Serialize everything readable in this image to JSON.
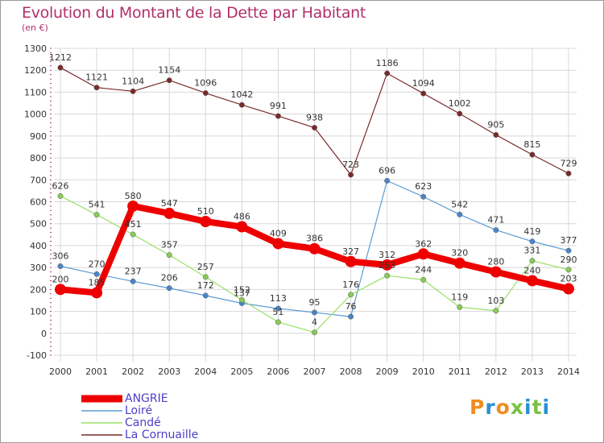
{
  "title": "Evolution du Montant de la Dette par Habitant",
  "unit": "(en €)",
  "logo": {
    "text": "Proxiti",
    "colors": [
      "#f08c1e",
      "#2a8fd6",
      "#f08c1e",
      "#7ac143",
      "#2a8fd6",
      "#7ac143",
      "#2a8fd6"
    ]
  },
  "chart_data": {
    "type": "line",
    "x": [
      "2000",
      "2001",
      "2002",
      "2003",
      "2004",
      "2005",
      "2006",
      "2007",
      "2008",
      "2009",
      "2010",
      "2011",
      "2012",
      "2013",
      "2014"
    ],
    "ylim": [
      -100,
      1300
    ],
    "yticks": [
      "-100",
      "0",
      "100",
      "200",
      "300",
      "400",
      "500",
      "600",
      "700",
      "800",
      "900",
      "1000",
      "1100",
      "1200",
      "1300"
    ],
    "grid": true,
    "legend_position": "bottom",
    "series": [
      {
        "name": "ANGRIE",
        "color": "#ee0000",
        "values": [
          200,
          185,
          580,
          547,
          510,
          486,
          409,
          386,
          327,
          312,
          362,
          320,
          280,
          240,
          203
        ],
        "labels": [
          "200",
          "185",
          "580",
          "547",
          "510",
          "486",
          "409",
          "386",
          "327",
          "312",
          "362",
          "320",
          "280",
          "240",
          "203"
        ]
      },
      {
        "name": "Loiré",
        "color": "#5b9bd5",
        "values": [
          306,
          270,
          237,
          206,
          172,
          137,
          113,
          95,
          76,
          696,
          623,
          542,
          471,
          419,
          377
        ],
        "labels": [
          "306",
          "270",
          "237",
          "206",
          "172",
          "137",
          "113",
          "95",
          "76",
          "696",
          "623",
          "542",
          "471",
          "419",
          "377"
        ]
      },
      {
        "name": "Candé",
        "color": "#99e066",
        "values": [
          626,
          541,
          451,
          357,
          257,
          152,
          51,
          4,
          176,
          263,
          244,
          119,
          103,
          331,
          290
        ],
        "labels": [
          "626",
          "541",
          "451",
          "357",
          "257",
          "152",
          "51",
          "4",
          "176",
          "263",
          "244",
          "119",
          "103",
          "331",
          "290"
        ]
      },
      {
        "name": "La Cornuaille",
        "color": "#7a2a2a",
        "values": [
          1212,
          1121,
          1104,
          1154,
          1096,
          1042,
          991,
          938,
          723,
          1186,
          1094,
          1002,
          905,
          815,
          729
        ],
        "labels": [
          "1212",
          "1121",
          "1104",
          "1154",
          "1096",
          "1042",
          "991",
          "938",
          "723",
          "1186",
          "1094",
          "1002",
          "905",
          "815",
          "729"
        ]
      }
    ]
  }
}
